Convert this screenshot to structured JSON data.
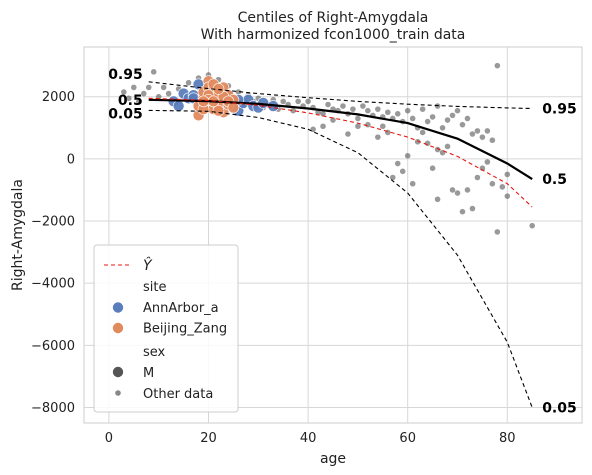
{
  "chart_data": {
    "type": "scatter",
    "title": "Centiles of Right-Amygdala",
    "subtitle": "With harmonized fcon1000_train data",
    "xlabel": "age",
    "ylabel": "Right-Amygdala",
    "xlim": [
      -5,
      95
    ],
    "ylim": [
      -8500,
      3600
    ],
    "x_ticks": [
      0,
      20,
      40,
      60,
      80
    ],
    "y_ticks": [
      -8000,
      -6000,
      -4000,
      -2000,
      0,
      2000
    ],
    "grid": true,
    "legend_placement": "lower-left",
    "legend": {
      "yhat_label": "Ŷ",
      "site_header": "site",
      "sex_header": "sex",
      "site_entries": [
        {
          "label": "AnnArbor_a",
          "color": "#5a7dbc"
        },
        {
          "label": "Beijing_Zang",
          "color": "#e18a5e"
        }
      ],
      "sex_entries": [
        {
          "label": "M",
          "color": "#555555"
        }
      ],
      "other_label": "Other data"
    },
    "series": [
      {
        "name": "Ŷ",
        "style": "dashed",
        "color": "#e8160f",
        "x": [
          8,
          20,
          30,
          40,
          50,
          60,
          70,
          80,
          85
        ],
        "y": [
          1950,
          1880,
          1720,
          1480,
          1150,
          700,
          80,
          -800,
          -1550
        ]
      }
    ],
    "centiles": [
      {
        "label": "0.95",
        "style": "dashed",
        "color": "#000000",
        "x": [
          8,
          20,
          30,
          40,
          50,
          60,
          70,
          80,
          85
        ],
        "y": [
          2480,
          2260,
          2100,
          1970,
          1850,
          1760,
          1690,
          1640,
          1620
        ]
      },
      {
        "label": "0.5",
        "style": "solid",
        "color": "#000000",
        "x": [
          8,
          20,
          30,
          40,
          50,
          60,
          70,
          80,
          85
        ],
        "y": [
          1900,
          1860,
          1770,
          1620,
          1430,
          1150,
          650,
          -150,
          -650
        ]
      },
      {
        "label": "0.05",
        "style": "dashed",
        "color": "#000000",
        "x": [
          8,
          20,
          30,
          40,
          50,
          60,
          70,
          80,
          85
        ],
        "y": [
          1560,
          1530,
          1330,
          950,
          200,
          -1100,
          -3100,
          -5900,
          -8000
        ]
      }
    ],
    "highlight_points": {
      "AnnArbor_a": [
        [
          13,
          1850
        ],
        [
          14,
          1700
        ],
        [
          15,
          2100
        ],
        [
          16,
          1950
        ],
        [
          17,
          2050
        ],
        [
          18,
          2400
        ],
        [
          19,
          1800
        ],
        [
          20,
          2200
        ],
        [
          21,
          2000
        ],
        [
          22,
          1650
        ],
        [
          23,
          1750
        ],
        [
          24,
          1900
        ],
        [
          25,
          1700
        ],
        [
          26,
          1550
        ],
        [
          27,
          1800
        ],
        [
          28,
          1900
        ],
        [
          29,
          1700
        ],
        [
          30,
          1650
        ],
        [
          31,
          1800
        ],
        [
          33,
          1700
        ],
        [
          17,
          1950
        ],
        [
          19,
          2050
        ],
        [
          22,
          1850
        ],
        [
          24,
          2050
        ],
        [
          26,
          1900
        ]
      ],
      "Beijing_Zang": [
        [
          18,
          1400
        ],
        [
          18,
          1700
        ],
        [
          19,
          1950
        ],
        [
          19,
          2150
        ],
        [
          20,
          2500
        ],
        [
          20,
          2300
        ],
        [
          20,
          1800
        ],
        [
          21,
          2000
        ],
        [
          21,
          1600
        ],
        [
          21,
          2200
        ],
        [
          22,
          1900
        ],
        [
          22,
          2100
        ],
        [
          22,
          1700
        ],
        [
          23,
          1800
        ],
        [
          23,
          2300
        ],
        [
          23,
          1500
        ],
        [
          24,
          2050
        ],
        [
          24,
          1750
        ],
        [
          25,
          1900
        ],
        [
          19,
          1600
        ],
        [
          20,
          2050
        ],
        [
          21,
          2400
        ],
        [
          22,
          1550
        ],
        [
          23,
          2000
        ],
        [
          24,
          1850
        ],
        [
          25,
          1650
        ],
        [
          20,
          1900
        ],
        [
          21,
          1850
        ],
        [
          22,
          2250
        ],
        [
          19,
          1850
        ]
      ]
    },
    "other_points": [
      [
        3,
        2150
      ],
      [
        4,
        1950
      ],
      [
        5,
        2300
      ],
      [
        6,
        1850
      ],
      [
        7,
        2100
      ],
      [
        8,
        2300
      ],
      [
        9,
        2800
      ],
      [
        10,
        2000
      ],
      [
        11,
        2300
      ],
      [
        12,
        2100
      ],
      [
        14,
        2250
      ],
      [
        16,
        2450
      ],
      [
        18,
        2600
      ],
      [
        20,
        2700
      ],
      [
        22,
        2550
      ],
      [
        24,
        2350
      ],
      [
        26,
        2150
      ],
      [
        27,
        1700
      ],
      [
        28,
        2050
      ],
      [
        29,
        1850
      ],
      [
        30,
        1950
      ],
      [
        31,
        1650
      ],
      [
        32,
        1750
      ],
      [
        33,
        1900
      ],
      [
        34,
        1600
      ],
      [
        35,
        1850
      ],
      [
        36,
        1750
      ],
      [
        37,
        1550
      ],
      [
        38,
        1850
      ],
      [
        39,
        1700
      ],
      [
        40,
        1850
      ],
      [
        41,
        1650
      ],
      [
        42,
        1500
      ],
      [
        43,
        1450
      ],
      [
        44,
        1750
      ],
      [
        45,
        1600
      ],
      [
        46,
        1550
      ],
      [
        47,
        1700
      ],
      [
        48,
        1450
      ],
      [
        49,
        1600
      ],
      [
        50,
        1300
      ],
      [
        51,
        1700
      ],
      [
        52,
        1550
      ],
      [
        53,
        1400
      ],
      [
        54,
        1600
      ],
      [
        55,
        1350
      ],
      [
        56,
        1500
      ],
      [
        57,
        1300
      ],
      [
        58,
        1450
      ],
      [
        59,
        1200
      ],
      [
        60,
        1550
      ],
      [
        61,
        1300
      ],
      [
        62,
        1000
      ],
      [
        63,
        1600
      ],
      [
        64,
        1200
      ],
      [
        65,
        1350
      ],
      [
        66,
        1700
      ],
      [
        67,
        1000
      ],
      [
        68,
        1250
      ],
      [
        69,
        1400
      ],
      [
        70,
        1550
      ],
      [
        71,
        1100
      ],
      [
        72,
        1300
      ],
      [
        73,
        800
      ],
      [
        74,
        900
      ],
      [
        75,
        700
      ],
      [
        76,
        900
      ],
      [
        77,
        600
      ],
      [
        78,
        3000
      ],
      [
        79,
        -900
      ],
      [
        80,
        -500
      ],
      [
        41,
        950
      ],
      [
        43,
        1050
      ],
      [
        48,
        800
      ],
      [
        50,
        1050
      ],
      [
        54,
        700
      ],
      [
        56,
        850
      ],
      [
        57,
        -600
      ],
      [
        58,
        -150
      ],
      [
        59,
        -400
      ],
      [
        60,
        100
      ],
      [
        61,
        -800
      ],
      [
        62,
        550
      ],
      [
        64,
        500
      ],
      [
        65,
        -300
      ],
      [
        66,
        -1300
      ],
      [
        67,
        200
      ],
      [
        68,
        400
      ],
      [
        69,
        -1000
      ],
      [
        70,
        -1100
      ],
      [
        71,
        -1700
      ],
      [
        72,
        -1000
      ],
      [
        73,
        -1600
      ],
      [
        74,
        -600
      ],
      [
        75,
        -300
      ],
      [
        76,
        -100
      ],
      [
        77,
        -800
      ],
      [
        78,
        -2350
      ],
      [
        80,
        -1200
      ],
      [
        85,
        -2150
      ],
      [
        45,
        1250
      ],
      [
        52,
        1100
      ],
      [
        55,
        1050
      ],
      [
        63,
        850
      ],
      [
        66,
        300
      ]
    ]
  }
}
